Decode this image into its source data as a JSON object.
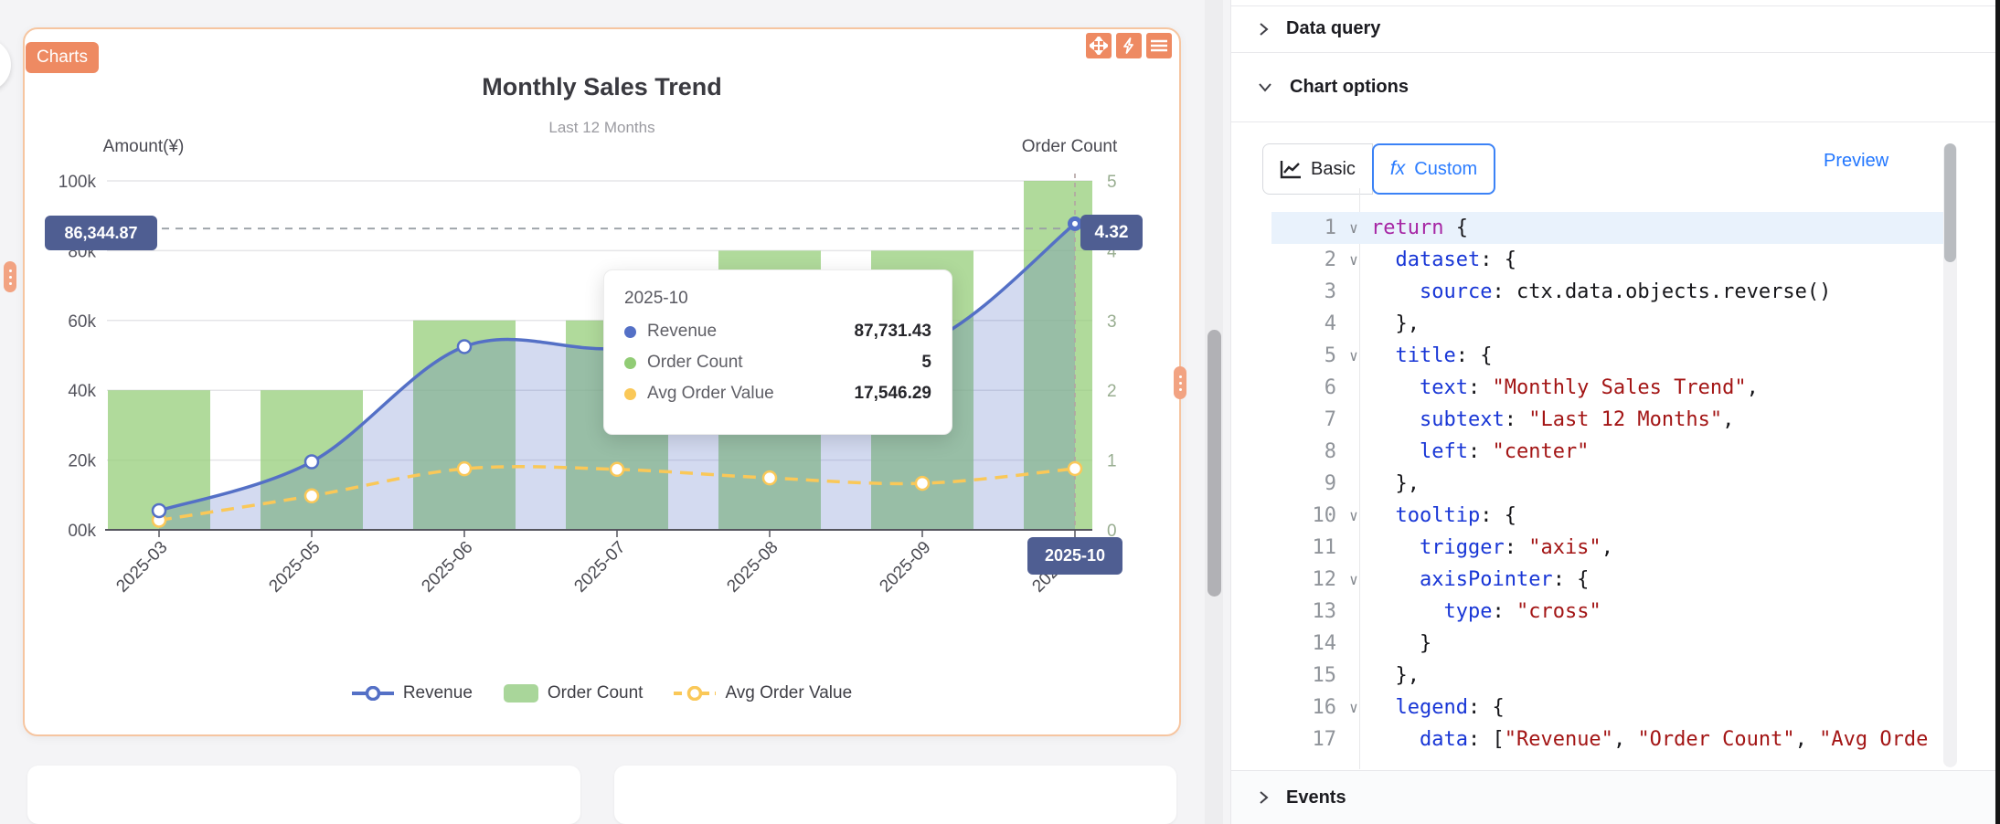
{
  "workspace": {
    "charts_badge": "Charts",
    "toolbar_icons": [
      "move-icon",
      "lightning-icon",
      "menu-icon"
    ]
  },
  "chart_data": {
    "type": "combo",
    "title": "Monthly Sales Trend",
    "subtitle": "Last 12 Months",
    "y_left_label": "Amount(¥)",
    "y_right_label": "Order Count",
    "y_left_ticks": [
      "100k",
      "80k",
      "60k",
      "40k",
      "20k",
      "00k"
    ],
    "y_left_range": [
      0,
      100000
    ],
    "y_right_ticks": [
      "5",
      "4",
      "3",
      "2",
      "1",
      "0"
    ],
    "y_right_range": [
      0,
      5
    ],
    "categories": [
      "2025-03",
      "2025-05",
      "2025-06",
      "2025-07",
      "2025-08",
      "2025-09",
      "2025-10"
    ],
    "series": [
      {
        "name": "Revenue",
        "type": "line",
        "axis": "left",
        "color": "#5470c6",
        "area_color": "rgba(84,112,198,0.26)",
        "values": [
          5500,
          19500,
          52500,
          52000,
          59500,
          53300,
          87731.43
        ]
      },
      {
        "name": "Order Count",
        "type": "bar",
        "axis": "right",
        "color": "rgba(145,204,117,0.72)",
        "values": [
          2,
          2,
          3,
          3,
          4,
          4,
          5
        ]
      },
      {
        "name": "Avg Order Value",
        "type": "line-dashed",
        "axis": "left",
        "color": "#fac858",
        "values": [
          2750,
          9750,
          17500,
          17333,
          14875,
          13325,
          17546.29
        ]
      }
    ],
    "legend": [
      "Revenue",
      "Order Count",
      "Avg Order Value"
    ],
    "grid": true,
    "legend_position": "bottom"
  },
  "crosshair": {
    "y_left_label": "86,344.87",
    "y_right_label": "4.32",
    "x_label": "2025-10",
    "y_value": 86344.87,
    "x_index": 6
  },
  "tooltip": {
    "title": "2025-10",
    "rows": [
      {
        "name": "Revenue",
        "value": "87,731.43",
        "color": "#5470c6"
      },
      {
        "name": "Order Count",
        "value": "5",
        "color": "#91cc75"
      },
      {
        "name": "Avg Order Value",
        "value": "17,546.29",
        "color": "#fac858"
      }
    ]
  },
  "panel": {
    "sections": [
      {
        "label": "Data query",
        "state": "collapsed"
      },
      {
        "label": "Chart options",
        "state": "expanded"
      },
      {
        "label": "Events",
        "state": "collapsed"
      }
    ],
    "tabs": [
      {
        "label": "Basic",
        "icon": "line-chart-icon",
        "active": false
      },
      {
        "label": "Custom",
        "icon": "fx-icon",
        "active": true
      }
    ],
    "preview_label": "Preview",
    "code": {
      "active_line": 1,
      "fold_lines": [
        1,
        2,
        5,
        10,
        12,
        16
      ],
      "lines": [
        [
          [
            "kw",
            "return"
          ],
          [
            "p",
            " {"
          ]
        ],
        [
          [
            "p",
            "  "
          ],
          [
            "k",
            "dataset"
          ],
          [
            "p",
            ": {"
          ]
        ],
        [
          [
            "p",
            "    "
          ],
          [
            "k",
            "source"
          ],
          [
            "p",
            ": ctx.data.objects.reverse()"
          ]
        ],
        [
          [
            "p",
            "  },"
          ]
        ],
        [
          [
            "p",
            "  "
          ],
          [
            "k",
            "title"
          ],
          [
            "p",
            ": {"
          ]
        ],
        [
          [
            "p",
            "    "
          ],
          [
            "k",
            "text"
          ],
          [
            "p",
            ": "
          ],
          [
            "s",
            "\"Monthly Sales Trend\""
          ],
          [
            "p",
            ","
          ]
        ],
        [
          [
            "p",
            "    "
          ],
          [
            "k",
            "subtext"
          ],
          [
            "p",
            ": "
          ],
          [
            "s",
            "\"Last 12 Months\""
          ],
          [
            "p",
            ","
          ]
        ],
        [
          [
            "p",
            "    "
          ],
          [
            "k",
            "left"
          ],
          [
            "p",
            ": "
          ],
          [
            "s",
            "\"center\""
          ]
        ],
        [
          [
            "p",
            "  },"
          ]
        ],
        [
          [
            "p",
            "  "
          ],
          [
            "k",
            "tooltip"
          ],
          [
            "p",
            ": {"
          ]
        ],
        [
          [
            "p",
            "    "
          ],
          [
            "k",
            "trigger"
          ],
          [
            "p",
            ": "
          ],
          [
            "s",
            "\"axis\""
          ],
          [
            "p",
            ","
          ]
        ],
        [
          [
            "p",
            "    "
          ],
          [
            "k",
            "axisPointer"
          ],
          [
            "p",
            ": {"
          ]
        ],
        [
          [
            "p",
            "      "
          ],
          [
            "k",
            "type"
          ],
          [
            "p",
            ": "
          ],
          [
            "s",
            "\"cross\""
          ]
        ],
        [
          [
            "p",
            "    }"
          ]
        ],
        [
          [
            "p",
            "  },"
          ]
        ],
        [
          [
            "p",
            "  "
          ],
          [
            "k",
            "legend"
          ],
          [
            "p",
            ": {"
          ]
        ],
        [
          [
            "p",
            "    "
          ],
          [
            "k",
            "data"
          ],
          [
            "p",
            ": ["
          ],
          [
            "s",
            "\"Revenue\""
          ],
          [
            "p",
            ", "
          ],
          [
            "s",
            "\"Order Count\""
          ],
          [
            "p",
            ", "
          ],
          [
            "s",
            "\"Avg Orde"
          ]
        ]
      ]
    }
  }
}
